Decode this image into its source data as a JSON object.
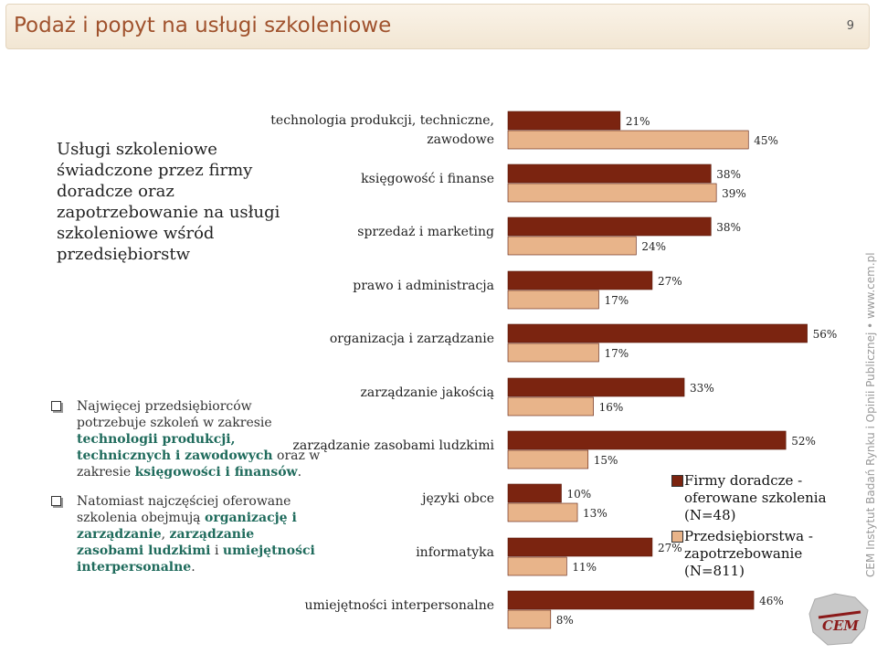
{
  "header": {
    "title": "Podaż i popyt na usługi szkoleniowe",
    "page_number": "9"
  },
  "left_title": "Usługi szkoleniowe świadczone przez firmy doradcze oraz zapotrzebowanie na usługi szkoleniowe wśród przedsiębiorstw",
  "bullets": [
    {
      "parts": [
        {
          "text": "Najwięcej przedsiębiorców potrzebuje szkoleń w zakresie ",
          "hl": false
        },
        {
          "text": "technologii produkcji, technicznych i zawodowych",
          "hl": true
        },
        {
          "text": " oraz w zakresie ",
          "hl": false
        },
        {
          "text": "księgowości i finansów",
          "hl": true
        },
        {
          "text": ".",
          "hl": false
        }
      ]
    },
    {
      "parts": [
        {
          "text": "Natomiast najczęściej oferowane szkolenia obejmują ",
          "hl": false
        },
        {
          "text": "organizację i zarządzanie",
          "hl": true
        },
        {
          "text": ", ",
          "hl": false
        },
        {
          "text": "zarządzanie zasobami ludzkimi",
          "hl": true
        },
        {
          "text": " i ",
          "hl": false
        },
        {
          "text": "umiejętności interpersonalne",
          "hl": true
        },
        {
          "text": ".",
          "hl": false
        }
      ]
    }
  ],
  "chart_data": {
    "type": "bar",
    "orientation": "horizontal",
    "categories": [
      "technologia produkcji, techniczne, zawodowe",
      "księgowość i finanse",
      "sprzedaż i marketing",
      "prawo i administracja",
      "organizacja i zarządzanie",
      "zarządzanie jakością",
      "zarządzanie zasobami ludzkimi",
      "języki obce",
      "informatyka",
      "umiejętności interpersonalne"
    ],
    "series": [
      {
        "name": "Firmy doradcze - oferowane szkolenia (N=48)",
        "values": [
          21,
          38,
          38,
          27,
          56,
          33,
          52,
          10,
          27,
          46
        ],
        "color": "#7b2410"
      },
      {
        "name": "Przedsiębiorstwa - zapotrzebowanie (N=811)",
        "values": [
          45,
          39,
          24,
          17,
          17,
          16,
          15,
          13,
          11,
          8
        ],
        "color": "#e8b48a"
      }
    ],
    "value_suffix": "%",
    "xlim": [
      0,
      60
    ],
    "legend_position": "right"
  },
  "legend": [
    {
      "label": "Firmy doradcze - oferowane szkolenia (N=48)",
      "color": "#7b2410"
    },
    {
      "label": "Przedsiębiorstwa - zapotrzebowanie (N=811)",
      "color": "#e8b48a"
    }
  ],
  "side_note": "CEM Instytut Badań Rynku i Opinii Publicznej • www.cem.pl",
  "logo_text": "CEM"
}
